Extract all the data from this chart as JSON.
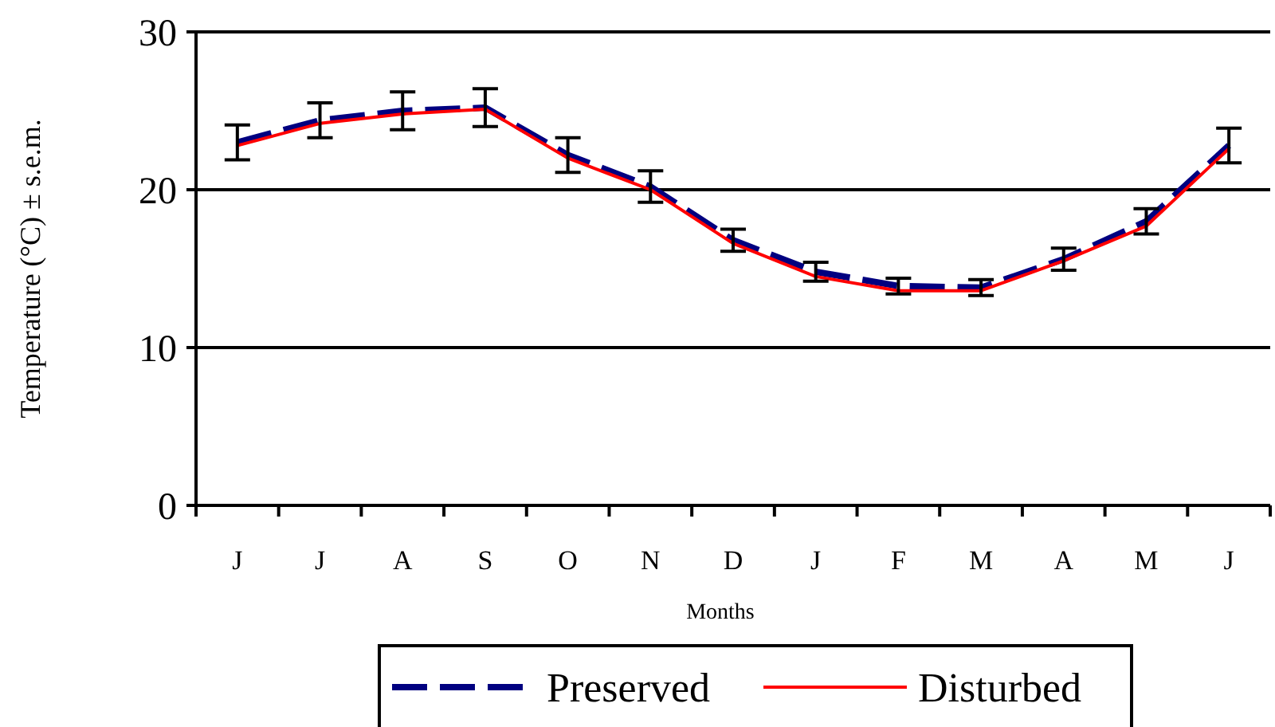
{
  "chart_data": {
    "type": "line",
    "xlabel": "Months",
    "ylabel": "Temperature  (°C) ± s.e.m.",
    "categories": [
      "J",
      "J",
      "A",
      "S",
      "O",
      "N",
      "D",
      "J",
      "F",
      "M",
      "A",
      "M",
      "J"
    ],
    "series": [
      {
        "name": "Preserved",
        "color": "#000080",
        "line_style": "dashed",
        "values": [
          23,
          24.4,
          25,
          25.2,
          22.2,
          20.2,
          16.8,
          14.8,
          13.9,
          13.8,
          15.6,
          18,
          22.8
        ],
        "errors": [
          1.1,
          1.1,
          1.2,
          1.2,
          1.1,
          1.0,
          0.7,
          0.6,
          0.5,
          0.5,
          0.7,
          0.8,
          1.1
        ]
      },
      {
        "name": "Disturbed",
        "color": "#ff0000",
        "line_style": "solid",
        "values": [
          22.8,
          24.2,
          24.8,
          25.1,
          22,
          20,
          16.6,
          14.5,
          13.6,
          13.6,
          15.5,
          17.7,
          22.6
        ]
      }
    ],
    "ylim": [
      0,
      30
    ],
    "yticks": [
      0,
      10,
      20,
      30
    ],
    "grid": "y",
    "legend": "bottom"
  }
}
